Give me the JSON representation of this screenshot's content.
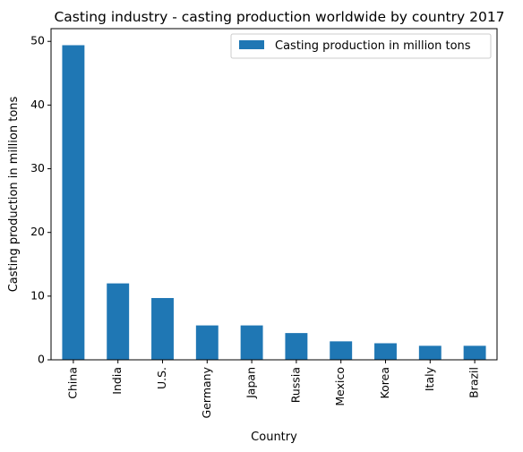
{
  "chart_data": {
    "type": "bar",
    "title": "Casting industry - casting production worldwide by country 2017",
    "xlabel": "Country",
    "ylabel": "Casting production in million tons",
    "categories": [
      "China",
      "India",
      "U.S.",
      "Germany",
      "Japan",
      "Russia",
      "Mexico",
      "Korea",
      "Italy",
      "Brazil"
    ],
    "series": [
      {
        "name": "Casting production in million tons",
        "color": "#1f77b4",
        "values": [
          49.4,
          12.0,
          9.7,
          5.4,
          5.4,
          4.2,
          2.9,
          2.6,
          2.2,
          2.2
        ]
      }
    ],
    "ylim": [
      0,
      52
    ],
    "yticks": [
      0,
      10,
      20,
      30,
      40,
      50
    ],
    "grid": false,
    "legend_position": "top-right"
  }
}
